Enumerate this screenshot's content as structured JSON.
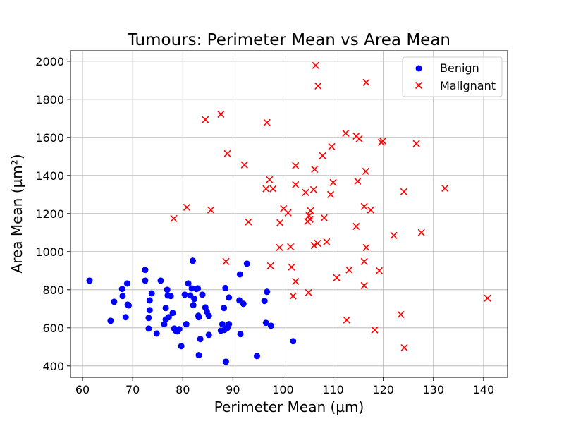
{
  "chart_data": {
    "type": "scatter",
    "title": "Tumours: Perimeter Mean vs Area Mean",
    "xlabel": "Perimeter Mean (µm)",
    "ylabel": "Area Mean (µm²)",
    "xlim": [
      57.6,
      144.8
    ],
    "ylim": [
      340,
      2055
    ],
    "xticks": [
      60,
      70,
      80,
      90,
      100,
      110,
      120,
      130,
      140
    ],
    "yticks": [
      400,
      600,
      800,
      1000,
      1200,
      1400,
      1600,
      1800,
      2000
    ],
    "grid": true,
    "legend_position": "top-right",
    "series": [
      {
        "name": "Benign",
        "marker": "circle",
        "color": "#0000ff",
        "points": [
          [
            61.4,
            848
          ],
          [
            65.6,
            637
          ],
          [
            66.3,
            737
          ],
          [
            68.0,
            767
          ],
          [
            67.9,
            804
          ],
          [
            68.6,
            656
          ],
          [
            68.9,
            833
          ],
          [
            69.0,
            722
          ],
          [
            69.2,
            718
          ],
          [
            72.5,
            904
          ],
          [
            72.5,
            848
          ],
          [
            73.2,
            596
          ],
          [
            73.2,
            652
          ],
          [
            73.4,
            693
          ],
          [
            73.4,
            744
          ],
          [
            73.8,
            781
          ],
          [
            74.8,
            570
          ],
          [
            75.6,
            848
          ],
          [
            76.3,
            619
          ],
          [
            76.6,
            704
          ],
          [
            76.6,
            644
          ],
          [
            76.9,
            800
          ],
          [
            77.0,
            770
          ],
          [
            77.2,
            656
          ],
          [
            77.6,
            767
          ],
          [
            78.0,
            678
          ],
          [
            78.3,
            596
          ],
          [
            78.6,
            585
          ],
          [
            78.9,
            581
          ],
          [
            79.3,
            593
          ],
          [
            79.7,
            504
          ],
          [
            80.4,
            774
          ],
          [
            80.7,
            619
          ],
          [
            81.1,
            833
          ],
          [
            81.5,
            770
          ],
          [
            81.8,
            807
          ],
          [
            82.0,
            952
          ],
          [
            82.1,
            719
          ],
          [
            82.3,
            752
          ],
          [
            82.7,
            804
          ],
          [
            83.0,
            807
          ],
          [
            83.1,
            663
          ],
          [
            83.2,
            656
          ],
          [
            83.5,
            541
          ],
          [
            83.2,
            456
          ],
          [
            83.9,
            774
          ],
          [
            84.5,
            707
          ],
          [
            84.8,
            685
          ],
          [
            85.2,
            663
          ],
          [
            85.2,
            563
          ],
          [
            87.6,
            585
          ],
          [
            87.9,
            619
          ],
          [
            88.2,
            704
          ],
          [
            88.5,
            809
          ],
          [
            88.3,
            589
          ],
          [
            88.6,
            422
          ],
          [
            88.9,
            600
          ],
          [
            89.2,
            619
          ],
          [
            89.2,
            759
          ],
          [
            91.3,
            744
          ],
          [
            91.4,
            881
          ],
          [
            91.5,
            567
          ],
          [
            92.1,
            726
          ],
          [
            92.8,
            937
          ],
          [
            94.8,
            452
          ],
          [
            96.3,
            741
          ],
          [
            96.6,
            626
          ],
          [
            96.8,
            789
          ],
          [
            97.6,
            611
          ],
          [
            102.0,
            530
          ]
        ]
      },
      {
        "name": "Malignant",
        "marker": "x",
        "color": "#ff0000",
        "points": [
          [
            106.5,
            1978
          ],
          [
            107.0,
            1870
          ],
          [
            116.6,
            1889
          ],
          [
            96.8,
            1678
          ],
          [
            87.6,
            1722
          ],
          [
            84.5,
            1693
          ],
          [
            112.5,
            1622
          ],
          [
            114.6,
            1607
          ],
          [
            115.2,
            1593
          ],
          [
            119.9,
            1581
          ],
          [
            119.6,
            1574
          ],
          [
            126.6,
            1567
          ],
          [
            109.7,
            1552
          ],
          [
            107.9,
            1504
          ],
          [
            88.9,
            1515
          ],
          [
            92.3,
            1456
          ],
          [
            102.5,
            1452
          ],
          [
            106.3,
            1433
          ],
          [
            116.5,
            1422
          ],
          [
            97.3,
            1378
          ],
          [
            102.5,
            1352
          ],
          [
            96.6,
            1330
          ],
          [
            98.0,
            1330
          ],
          [
            104.5,
            1311
          ],
          [
            109.5,
            1300
          ],
          [
            110.0,
            1363
          ],
          [
            106.1,
            1326
          ],
          [
            114.9,
            1370
          ],
          [
            132.3,
            1333
          ],
          [
            124.1,
            1315
          ],
          [
            80.8,
            1233
          ],
          [
            85.6,
            1219
          ],
          [
            116.2,
            1237
          ],
          [
            117.5,
            1219
          ],
          [
            100.1,
            1226
          ],
          [
            101.0,
            1204
          ],
          [
            105.5,
            1215
          ],
          [
            105.2,
            1189
          ],
          [
            105.4,
            1170
          ],
          [
            108.2,
            1178
          ],
          [
            104.9,
            1159
          ],
          [
            99.4,
            1152
          ],
          [
            93.1,
            1156
          ],
          [
            114.6,
            1133
          ],
          [
            78.2,
            1174
          ],
          [
            127.6,
            1100
          ],
          [
            122.1,
            1085
          ],
          [
            106.2,
            1033
          ],
          [
            106.9,
            1044
          ],
          [
            108.7,
            1052
          ],
          [
            116.6,
            1022
          ],
          [
            99.3,
            1022
          ],
          [
            101.5,
            1026
          ],
          [
            110.7,
            863
          ],
          [
            113.2,
            904
          ],
          [
            116.2,
            948
          ],
          [
            119.2,
            900
          ],
          [
            88.6,
            948
          ],
          [
            97.5,
            926
          ],
          [
            101.7,
            919
          ],
          [
            102.5,
            844
          ],
          [
            102.0,
            767
          ],
          [
            105.1,
            785
          ],
          [
            116.2,
            822
          ],
          [
            140.8,
            756
          ],
          [
            123.5,
            670
          ],
          [
            112.7,
            641
          ],
          [
            118.3,
            589
          ],
          [
            124.2,
            496
          ]
        ]
      }
    ]
  }
}
